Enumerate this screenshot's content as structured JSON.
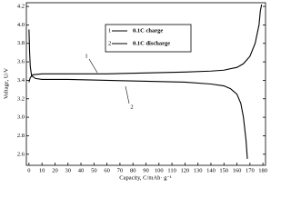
{
  "chart_data": {
    "type": "line",
    "xlabel": "Capacity, C/mAh· g⁻¹",
    "ylabel": "Voltage, U/V",
    "xlim": [
      -2,
      182
    ],
    "xticks": [
      0,
      10,
      20,
      30,
      40,
      50,
      60,
      70,
      80,
      90,
      100,
      110,
      120,
      130,
      140,
      150,
      160,
      170,
      180
    ],
    "ylim": [
      2.48,
      4.24
    ],
    "yticks": [
      2.6,
      2.8,
      {
        "value": 3,
        "label": "3.0"
      },
      3.2,
      3.4,
      3.6,
      3.8,
      {
        "value": 4,
        "label": "4.0"
      },
      4.2
    ],
    "series": [
      {
        "name": "0.1C charge",
        "label": "1",
        "color": "#000000",
        "x": [
          0,
          1,
          3,
          10,
          30,
          60,
          90,
          120,
          140,
          150,
          160,
          165,
          170,
          174,
          177,
          178,
          179
        ],
        "values": [
          3.38,
          3.43,
          3.46,
          3.47,
          3.47,
          3.47,
          3.48,
          3.49,
          3.5,
          3.51,
          3.54,
          3.58,
          3.66,
          3.8,
          4.0,
          4.15,
          4.22
        ]
      },
      {
        "name": "0.1C discharge",
        "label": "2",
        "color": "#000000",
        "x": [
          0,
          0.5,
          1,
          2,
          5,
          10,
          30,
          60,
          90,
          120,
          140,
          150,
          155,
          160,
          163,
          165,
          167,
          168
        ],
        "values": [
          3.95,
          3.7,
          3.55,
          3.45,
          3.42,
          3.41,
          3.41,
          3.4,
          3.39,
          3.38,
          3.36,
          3.34,
          3.31,
          3.25,
          3.15,
          3.0,
          2.75,
          2.55
        ]
      }
    ]
  }
}
